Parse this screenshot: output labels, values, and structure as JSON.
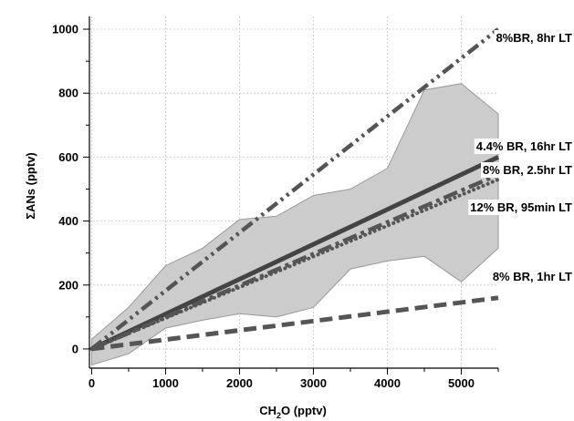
{
  "chart_data": {
    "type": "line",
    "title": "",
    "xlabel": {
      "main": "CH",
      "sub": "2",
      "rest": "O (pptv)"
    },
    "ylabel": "ΣANs (pptv)",
    "xlim": [
      -30,
      5500
    ],
    "ylim": [
      -60,
      1040
    ],
    "xticks": [
      0,
      1000,
      2000,
      3000,
      4000,
      5000
    ],
    "yticks": [
      0,
      200,
      400,
      600,
      800,
      1000
    ],
    "grid": true,
    "band": {
      "x": [
        0,
        500,
        1000,
        1500,
        2000,
        2500,
        3000,
        3500,
        4000,
        4500,
        5000,
        5500
      ],
      "upper": [
        30,
        130,
        260,
        315,
        405,
        415,
        480,
        500,
        565,
        810,
        830,
        735
      ],
      "lower": [
        -50,
        -15,
        65,
        90,
        110,
        100,
        130,
        250,
        275,
        290,
        210,
        315
      ],
      "color": "#cccccc",
      "edge": "#999999"
    },
    "series": [
      {
        "name": "4.4% BR, 16hr LT",
        "x": [
          0,
          5500
        ],
        "y": [
          0,
          600
        ],
        "style": "solid",
        "color": "#444444"
      },
      {
        "name": "8% BR, 2.5hr LT",
        "x": [
          0,
          5500
        ],
        "y": [
          0,
          545
        ],
        "style": "dashdot",
        "color": "#555555"
      },
      {
        "name": "12% BR, 95min LT",
        "x": [
          0,
          5500
        ],
        "y": [
          0,
          530
        ],
        "style": "dotted",
        "color": "#555555"
      },
      {
        "name": "8%BR, 8hr LT",
        "x": [
          0,
          5500
        ],
        "y": [
          0,
          1000
        ],
        "style": "dashdotdot",
        "color": "#555555"
      },
      {
        "name": "8% BR, 1hr LT",
        "x": [
          0,
          5500
        ],
        "y": [
          0,
          160
        ],
        "style": "dashed",
        "color": "#555555"
      }
    ]
  }
}
